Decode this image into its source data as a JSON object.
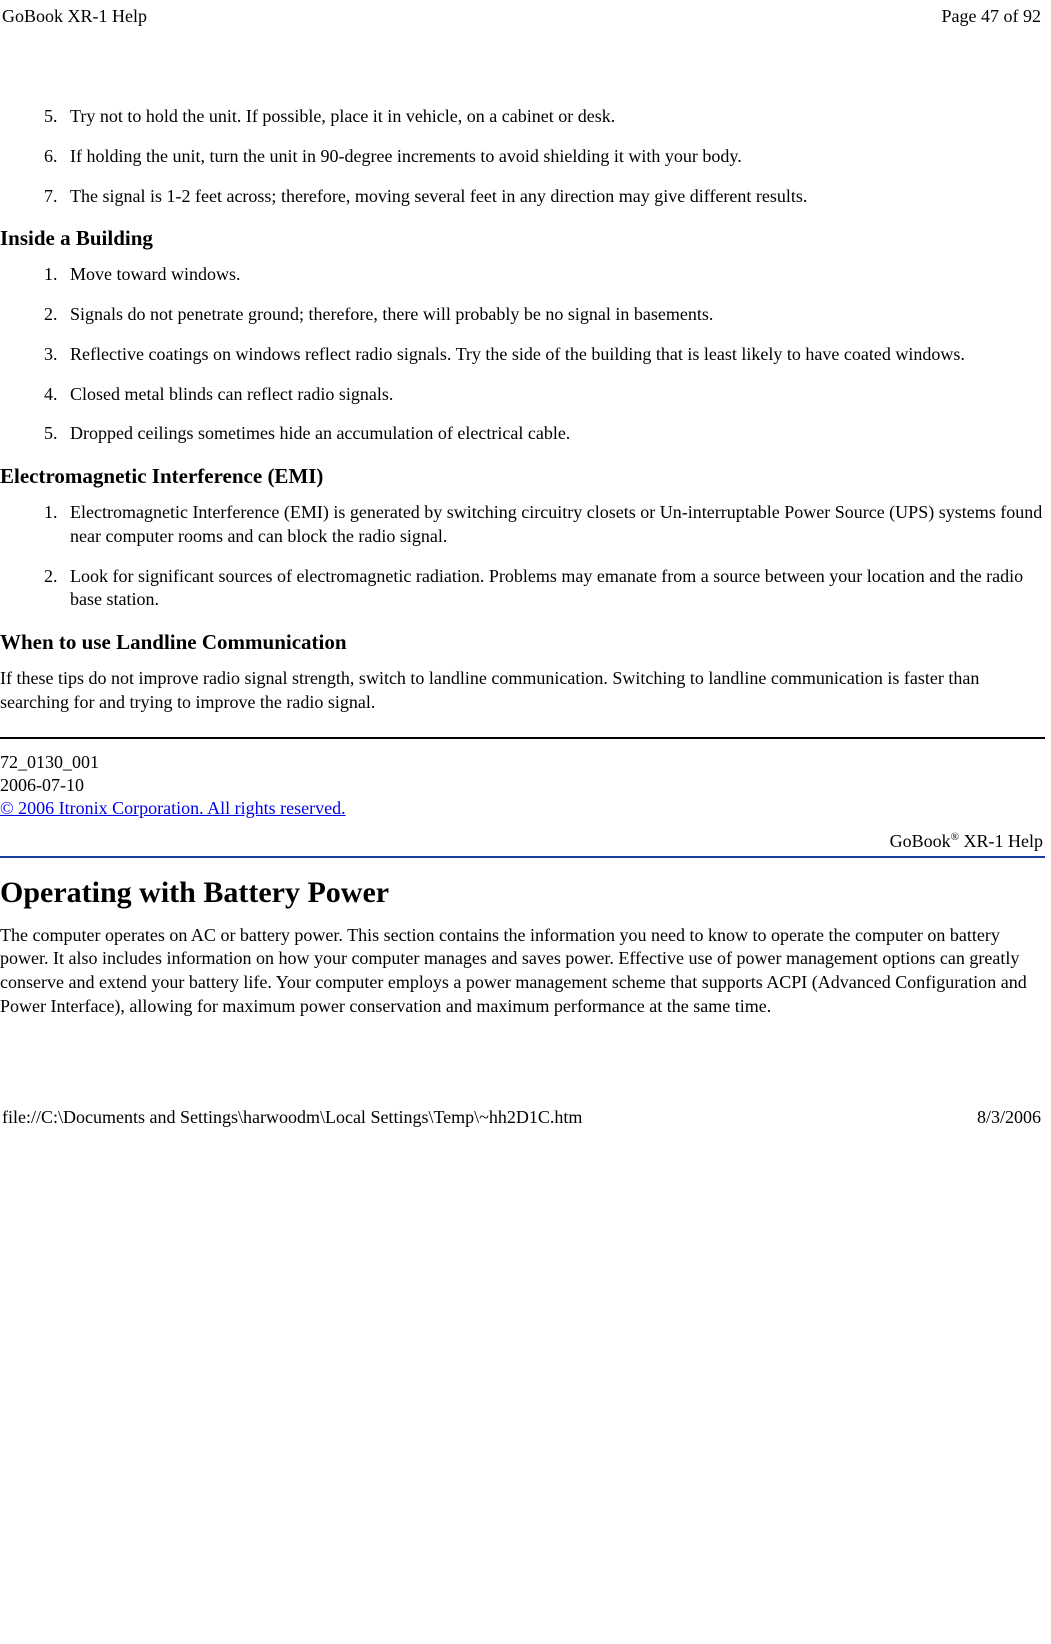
{
  "header": {
    "left": "GoBook XR-1 Help",
    "right": "Page 47 of 92"
  },
  "footer": {
    "left": "file://C:\\Documents and Settings\\harwoodm\\Local Settings\\Temp\\~hh2D1C.htm",
    "right": "8/3/2006"
  },
  "list1": {
    "start": 5,
    "items": [
      "Try not to hold the unit. If possible, place it in vehicle, on a cabinet or desk.",
      "If holding the unit, turn the unit in 90-degree increments to avoid shielding it with your body.",
      "The signal is 1-2 feet across; therefore, moving several feet in any direction may give different results."
    ]
  },
  "section2": {
    "heading": "Inside a Building",
    "items": [
      "Move toward windows.",
      "Signals do not penetrate ground; therefore, there will probably be no signal in basements.",
      "Reflective coatings on windows reflect radio signals. Try the side of the building that is least likely to have coated windows.",
      "Closed metal blinds can reflect radio signals.",
      "Dropped ceilings sometimes hide an accumulation of electrical cable."
    ]
  },
  "section3": {
    "heading": "Electromagnetic Interference (EMI)",
    "items": [
      "Electromagnetic Interference (EMI) is generated by switching circuitry closets or Un-interruptable Power Source (UPS) systems found near computer rooms and can block the radio signal.",
      "Look for significant sources of electromagnetic radiation. Problems may emanate from a source between your location and the radio base station."
    ]
  },
  "section4": {
    "heading": "When to use Landline Communication",
    "body": "If these tips do not improve radio signal strength, switch to landline communication. Switching to landline communication is faster than searching for and trying to improve the radio signal."
  },
  "meta": {
    "doc_id": "72_0130_001",
    "date": "2006-07-10",
    "copyright_link": "© 2006 Itronix Corporation. All rights reserved."
  },
  "gobook_label_prefix": "GoBook",
  "gobook_label_suffix": " XR-1 Help",
  "gobook_reg": "®",
  "section5": {
    "heading": "Operating with Battery Power",
    "body": "The computer operates on AC or battery power. This section contains the information you need to know to operate the computer on battery power. It also includes information on how your computer manages and saves power. Effective use of power management options can greatly conserve and extend your battery life.  Your computer employs a power management scheme that supports ACPI (Advanced Configuration and Power Interface), allowing for maximum power conservation and maximum performance at the same time."
  }
}
